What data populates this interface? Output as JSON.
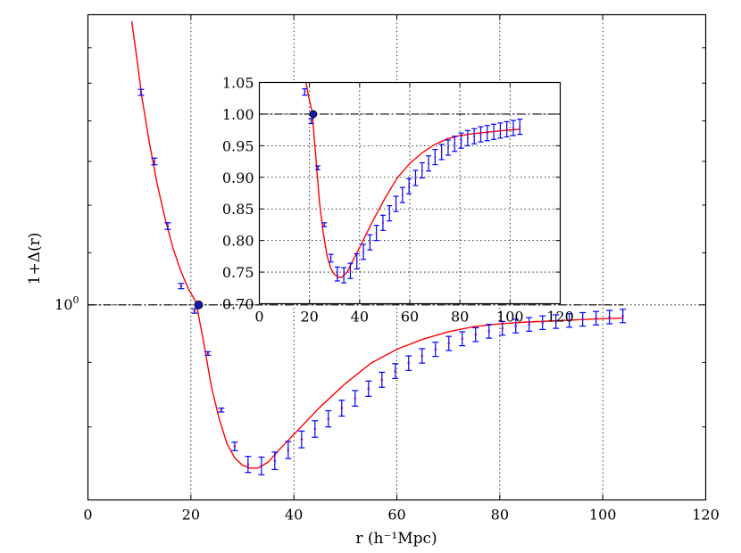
{
  "chart_data": [
    {
      "type": "line",
      "name": "main",
      "xlabel": "r  (h⁻¹Mpc)",
      "ylabel": "1+Δ(r)",
      "xlim": [
        0,
        120
      ],
      "ylim": [
        0.7,
        1.7
      ],
      "xticks": [
        0,
        20,
        40,
        60,
        80,
        100,
        120
      ],
      "xtick_labels": [
        "0",
        "20",
        "40",
        "60",
        "80",
        "100",
        "120"
      ],
      "ytick_labels": [
        {
          "value": 1.0,
          "label": "10",
          "superscript": "0"
        }
      ],
      "ygrid": [
        1.0
      ],
      "yscale": "log",
      "reference_line": 1.0,
      "marked_point": {
        "x": 21.5,
        "y": 1.0
      },
      "series": [
        {
          "name": "model",
          "color": "#ff0000",
          "x": [
            8.5,
            9.5,
            10.5,
            12,
            13.5,
            15,
            16.5,
            18,
            19.5,
            21,
            22.5,
            24,
            25.5,
            27,
            28.5,
            30,
            31.5,
            33,
            35,
            37.5,
            40,
            45,
            50,
            55,
            60,
            65,
            70,
            75,
            80,
            85,
            90,
            95,
            100,
            104
          ],
          "y": [
            1.68,
            1.57,
            1.46,
            1.34,
            1.245,
            1.17,
            1.11,
            1.065,
            1.03,
            1.005,
            0.933,
            0.86,
            0.812,
            0.776,
            0.756,
            0.746,
            0.742,
            0.742,
            0.75,
            0.77,
            0.789,
            0.829,
            0.866,
            0.899,
            0.922,
            0.939,
            0.952,
            0.961,
            0.966,
            0.969,
            0.971,
            0.973,
            0.975,
            0.976
          ]
        },
        {
          "name": "measurements",
          "color": "#0000ff",
          "x": [
            10.3,
            12.9,
            15.5,
            18.1,
            20.7,
            23.3,
            25.9,
            28.5,
            31.1,
            33.7,
            36.3,
            38.9,
            41.5,
            44.1,
            46.7,
            49.3,
            51.9,
            54.5,
            57.1,
            59.7,
            62.3,
            64.9,
            67.5,
            70.1,
            72.7,
            75.3,
            77.9,
            80.5,
            83.1,
            85.7,
            88.3,
            90.9,
            93.5,
            96.1,
            98.7,
            101.3,
            103.9
          ],
          "y": [
            1.475,
            1.3,
            1.155,
            1.035,
            0.989,
            0.915,
            0.825,
            0.772,
            0.747,
            0.745,
            0.752,
            0.767,
            0.782,
            0.797,
            0.812,
            0.828,
            0.843,
            0.858,
            0.872,
            0.886,
            0.899,
            0.911,
            0.922,
            0.932,
            0.94,
            0.947,
            0.953,
            0.958,
            0.962,
            0.965,
            0.968,
            0.97,
            0.972,
            0.974,
            0.976,
            0.978,
            0.98
          ],
          "yerr": [
            0.008,
            0.008,
            0.007,
            0.005,
            0.004,
            0.003,
            0.003,
            0.006,
            0.011,
            0.012,
            0.012,
            0.012,
            0.012,
            0.012,
            0.012,
            0.012,
            0.012,
            0.012,
            0.012,
            0.012,
            0.012,
            0.012,
            0.012,
            0.012,
            0.012,
            0.012,
            0.012,
            0.012,
            0.012,
            0.012,
            0.012,
            0.012,
            0.012,
            0.012,
            0.012,
            0.012,
            0.012
          ]
        }
      ]
    },
    {
      "type": "line",
      "name": "inset",
      "xlim": [
        0,
        120
      ],
      "ylim": [
        0.7,
        1.05
      ],
      "xticks": [
        0,
        20,
        40,
        60,
        80,
        100,
        120
      ],
      "xtick_labels": [
        "0",
        "20",
        "40",
        "60",
        "80",
        "100",
        "120"
      ],
      "yticks": [
        0.7,
        0.75,
        0.8,
        0.85,
        0.9,
        0.95,
        1.0,
        1.05
      ],
      "ytick_labels": [
        "0.70",
        "0.75",
        "0.80",
        "0.85",
        "0.90",
        "0.95",
        "1.00",
        "1.05"
      ],
      "reference_line": 1.0,
      "marked_point": {
        "x": 21.5,
        "y": 1.0
      }
    }
  ]
}
